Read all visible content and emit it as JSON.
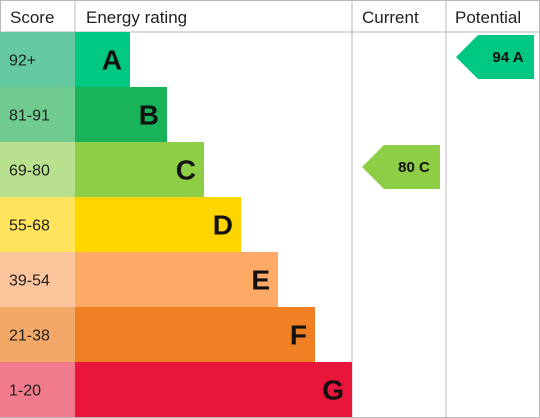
{
  "chart_data": {
    "type": "bar",
    "headers": {
      "score": "Score",
      "energy_rating": "Energy rating",
      "current": "Current",
      "potential": "Potential"
    },
    "bands": [
      {
        "letter": "A",
        "score": "92+",
        "color": "#00c781",
        "score_bg": "#64c9a0"
      },
      {
        "letter": "B",
        "score": "81-91",
        "color": "#19b459",
        "score_bg": "#6fcc8e"
      },
      {
        "letter": "C",
        "score": "69-80",
        "color": "#8dce46",
        "score_bg": "#b9e08e"
      },
      {
        "letter": "D",
        "score": "55-68",
        "color": "#ffd500",
        "score_bg": "#ffe45c"
      },
      {
        "letter": "E",
        "score": "39-54",
        "color": "#fcaa65",
        "score_bg": "#fdc59b"
      },
      {
        "letter": "F",
        "score": "21-38",
        "color": "#ef8023",
        "score_bg": "#f3a868"
      },
      {
        "letter": "G",
        "score": "1-20",
        "color": "#e9153b",
        "score_bg": "#f17a8c"
      }
    ],
    "current": {
      "label": "80 C",
      "value": 80,
      "band": "C"
    },
    "potential": {
      "label": "94 A",
      "value": 94,
      "band": "A"
    }
  }
}
